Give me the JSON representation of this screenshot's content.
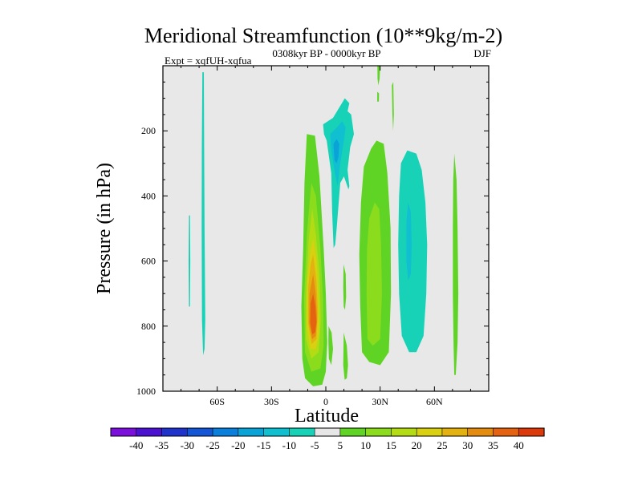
{
  "chart_data": {
    "type": "contour",
    "title": "Meridional Streamfunction (10**9kg/m-2)",
    "subtitle_left": "Expt = xqfUH-xqfua",
    "subtitle_center": "0308kyr BP - 0000kyr BP",
    "subtitle_right": "DJF",
    "xlabel": "Latitude",
    "ylabel": "Pressure (in hPa)",
    "xlim": [
      -90,
      90
    ],
    "ylim": [
      0,
      1000
    ],
    "y_inverted": true,
    "x_ticks": [
      {
        "value": -60,
        "label": "60S"
      },
      {
        "value": -30,
        "label": "30S"
      },
      {
        "value": 0,
        "label": "0"
      },
      {
        "value": 30,
        "label": "30N"
      },
      {
        "value": 60,
        "label": "60N"
      }
    ],
    "y_ticks": [
      {
        "value": 200,
        "label": "200"
      },
      {
        "value": 400,
        "label": "400"
      },
      {
        "value": 600,
        "label": "600"
      },
      {
        "value": 800,
        "label": "800"
      },
      {
        "value": 1000,
        "label": "1000"
      }
    ],
    "background_color": "#e8e8e8",
    "colorbar": {
      "levels": [
        -40,
        -35,
        -30,
        -25,
        -20,
        -15,
        -10,
        -5,
        5,
        10,
        15,
        20,
        25,
        30,
        35,
        40
      ],
      "labels": [
        "-40",
        "-35",
        "-30",
        "-25",
        "-20",
        "-15",
        "-10",
        "-5",
        "5",
        "10",
        "15",
        "20",
        "25",
        "30",
        "35",
        "40"
      ],
      "colors": [
        "#7b0fdc",
        "#4b12d2",
        "#2034cc",
        "#1456d6",
        "#0a80dc",
        "#0aa3d8",
        "#10c0d0",
        "#18d2b8",
        "#e6e6e6",
        "#60d424",
        "#8cdc1e",
        "#b4dc14",
        "#d8d010",
        "#e4b210",
        "#e48c10",
        "#e46210",
        "#dc3a0a"
      ]
    },
    "regions": [
      {
        "name": "contour-sh-narrow-band",
        "value": -7,
        "points": [
          [
            -68.2,
            20
          ],
          [
            -67.4,
            20
          ],
          [
            -67.2,
            250
          ],
          [
            -67.0,
            500
          ],
          [
            -66.6,
            780
          ],
          [
            -67.0,
            870
          ],
          [
            -67.8,
            890
          ],
          [
            -68.4,
            780
          ],
          [
            -68.6,
            500
          ],
          [
            -68.5,
            250
          ]
        ]
      },
      {
        "name": "contour-sh-sliver",
        "value": -7,
        "points": [
          [
            -75.6,
            460
          ],
          [
            -75.0,
            460
          ],
          [
            -74.9,
            600
          ],
          [
            -75.0,
            740
          ],
          [
            -75.6,
            740
          ],
          [
            -75.8,
            600
          ]
        ]
      },
      {
        "name": "contour-tropical-cell-5",
        "value": 7,
        "points": [
          [
            -10.5,
            210
          ],
          [
            -6,
            215
          ],
          [
            -3.5,
            340
          ],
          [
            -1.2,
            560
          ],
          [
            0,
            700
          ],
          [
            0.8,
            850
          ],
          [
            0,
            940
          ],
          [
            -2,
            980
          ],
          [
            -7,
            985
          ],
          [
            -11.5,
            960
          ],
          [
            -13,
            900
          ],
          [
            -13.5,
            740
          ],
          [
            -12.5,
            560
          ],
          [
            -11.8,
            360
          ]
        ]
      },
      {
        "name": "contour-tropical-cell-10",
        "value": 12,
        "points": [
          [
            -8,
            360
          ],
          [
            -5.5,
            400
          ],
          [
            -3,
            560
          ],
          [
            -1.5,
            720
          ],
          [
            -1.2,
            860
          ],
          [
            -3,
            930
          ],
          [
            -8,
            940
          ],
          [
            -11.5,
            880
          ],
          [
            -12,
            720
          ],
          [
            -10.5,
            520
          ]
        ]
      },
      {
        "name": "contour-tropical-cell-15",
        "value": 17,
        "points": [
          [
            -7.5,
            440
          ],
          [
            -5.5,
            520
          ],
          [
            -3.5,
            640
          ],
          [
            -2.8,
            780
          ],
          [
            -4,
            880
          ],
          [
            -8,
            900
          ],
          [
            -11,
            840
          ],
          [
            -11,
            700
          ],
          [
            -9.5,
            540
          ]
        ]
      },
      {
        "name": "contour-tropical-cell-20",
        "value": 22,
        "points": [
          [
            -7,
            530
          ],
          [
            -5,
            600
          ],
          [
            -4,
            720
          ],
          [
            -3.6,
            820
          ],
          [
            -5.5,
            870
          ],
          [
            -8.5,
            870
          ],
          [
            -10.5,
            800
          ],
          [
            -10.2,
            660
          ],
          [
            -8.6,
            570
          ]
        ]
      },
      {
        "name": "contour-tropical-cell-25",
        "value": 27,
        "points": [
          [
            -7,
            580
          ],
          [
            -5.2,
            660
          ],
          [
            -4.4,
            760
          ],
          [
            -5.2,
            840
          ],
          [
            -7.8,
            855
          ],
          [
            -9.8,
            790
          ],
          [
            -9.7,
            680
          ],
          [
            -8.4,
            610
          ]
        ]
      },
      {
        "name": "contour-tropical-cell-30",
        "value": 32,
        "points": [
          [
            -7,
            640
          ],
          [
            -5.6,
            700
          ],
          [
            -4.8,
            780
          ],
          [
            -5.6,
            830
          ],
          [
            -7.6,
            840
          ],
          [
            -9.2,
            790
          ],
          [
            -9,
            700
          ]
        ]
      },
      {
        "name": "contour-tropical-cell-35",
        "value": 37,
        "points": [
          [
            -7,
            700
          ],
          [
            -5.7,
            740
          ],
          [
            -5.2,
            790
          ],
          [
            -6,
            820
          ],
          [
            -7.5,
            825
          ],
          [
            -8.6,
            790
          ],
          [
            -8.4,
            730
          ]
        ]
      },
      {
        "name": "contour-upper-negative-5",
        "value": -7,
        "points": [
          [
            -1.5,
            180
          ],
          [
            4,
            160
          ],
          [
            10.5,
            100
          ],
          [
            13,
            115
          ],
          [
            12,
            140
          ],
          [
            14,
            150
          ],
          [
            15.5,
            210
          ],
          [
            13.5,
            250
          ],
          [
            12,
            320
          ],
          [
            13,
            370
          ],
          [
            12.5,
            380
          ],
          [
            10,
            340
          ],
          [
            8,
            360
          ],
          [
            6,
            500
          ],
          [
            5.2,
            550
          ],
          [
            4.3,
            560
          ],
          [
            3.5,
            450
          ],
          [
            3,
            330
          ],
          [
            0.5,
            230
          ],
          [
            -1,
            210
          ]
        ]
      },
      {
        "name": "contour-upper-negative-10",
        "value": -12,
        "points": [
          [
            2.4,
            210
          ],
          [
            6,
            190
          ],
          [
            9,
            170
          ],
          [
            11,
            190
          ],
          [
            10,
            230
          ],
          [
            8,
            300
          ],
          [
            6.5,
            370
          ],
          [
            5,
            330
          ],
          [
            3,
            260
          ]
        ]
      },
      {
        "name": "contour-upper-negative-15",
        "value": -17,
        "points": [
          [
            4.2,
            240
          ],
          [
            6,
            225
          ],
          [
            7.4,
            240
          ],
          [
            7,
            280
          ],
          [
            6,
            300
          ],
          [
            4.8,
            290
          ]
        ]
      },
      {
        "name": "contour-mid-positive-5",
        "value": 7,
        "points": [
          [
            21,
            310
          ],
          [
            25,
            255
          ],
          [
            28,
            230
          ],
          [
            32,
            240
          ],
          [
            34,
            330
          ],
          [
            35.8,
            500
          ],
          [
            36,
            700
          ],
          [
            34.8,
            880
          ],
          [
            30,
            920
          ],
          [
            24,
            910
          ],
          [
            20,
            880
          ],
          [
            19,
            740
          ],
          [
            18.5,
            580
          ],
          [
            19.4,
            420
          ]
        ]
      },
      {
        "name": "contour-mid-positive-10",
        "value": 12,
        "points": [
          [
            24,
            470
          ],
          [
            27,
            420
          ],
          [
            29.5,
            440
          ],
          [
            30.5,
            550
          ],
          [
            31,
            700
          ],
          [
            30,
            840
          ],
          [
            26,
            860
          ],
          [
            23,
            840
          ],
          [
            22.5,
            700
          ],
          [
            22.8,
            560
          ]
        ]
      },
      {
        "name": "contour-small-positive-a",
        "value": 7,
        "points": [
          [
            9.8,
            610
          ],
          [
            11,
            640
          ],
          [
            11.2,
            710
          ],
          [
            10.6,
            750
          ],
          [
            9.9,
            740
          ],
          [
            9.6,
            680
          ]
        ]
      },
      {
        "name": "contour-small-positive-b",
        "value": 7,
        "points": [
          [
            9.9,
            820
          ],
          [
            11.6,
            860
          ],
          [
            12.3,
            920
          ],
          [
            11.6,
            960
          ],
          [
            10.4,
            965
          ],
          [
            9.6,
            920
          ]
        ]
      },
      {
        "name": "contour-small-positive-c",
        "value": 7,
        "points": [
          [
            1.5,
            800
          ],
          [
            3.2,
            820
          ],
          [
            4,
            870
          ],
          [
            3,
            920
          ],
          [
            1.7,
            900
          ],
          [
            1.4,
            850
          ]
        ]
      },
      {
        "name": "contour-ferrel-negative-5",
        "value": -7,
        "points": [
          [
            45,
            260
          ],
          [
            50,
            270
          ],
          [
            53,
            320
          ],
          [
            55,
            420
          ],
          [
            56,
            550
          ],
          [
            55.5,
            700
          ],
          [
            54,
            830
          ],
          [
            50,
            880
          ],
          [
            46,
            880
          ],
          [
            42,
            830
          ],
          [
            40.5,
            700
          ],
          [
            40,
            550
          ],
          [
            40.5,
            400
          ],
          [
            41.5,
            300
          ]
        ]
      },
      {
        "name": "contour-ferrel-negative-10",
        "value": -12,
        "points": [
          [
            45.5,
            420
          ],
          [
            47,
            450
          ],
          [
            47.5,
            550
          ],
          [
            47,
            640
          ],
          [
            45.5,
            660
          ],
          [
            44.5,
            600
          ],
          [
            44.5,
            480
          ]
        ]
      },
      {
        "name": "contour-polar-positive-band",
        "value": 7,
        "points": [
          [
            71,
            270
          ],
          [
            72.2,
            350
          ],
          [
            72.8,
            500
          ],
          [
            73.2,
            700
          ],
          [
            72.8,
            850
          ],
          [
            71.8,
            950
          ],
          [
            71,
            950
          ],
          [
            70.6,
            860
          ],
          [
            70.2,
            700
          ],
          [
            70.2,
            500
          ],
          [
            70.4,
            350
          ]
        ]
      },
      {
        "name": "contour-top-positive-a",
        "value": 7,
        "points": [
          [
            28.5,
            0
          ],
          [
            30,
            0
          ],
          [
            29.7,
            40
          ],
          [
            29,
            60
          ],
          [
            28.6,
            40
          ]
        ]
      },
      {
        "name": "contour-top-positive-b",
        "value": 7,
        "points": [
          [
            36.5,
            60
          ],
          [
            37.3,
            50
          ],
          [
            37.6,
            150
          ],
          [
            37.2,
            200
          ],
          [
            36.8,
            150
          ]
        ]
      },
      {
        "name": "contour-top-positive-c",
        "value": 7,
        "points": [
          [
            28.4,
            80
          ],
          [
            29.4,
            85
          ],
          [
            29.3,
            110
          ],
          [
            28.4,
            110
          ]
        ]
      }
    ]
  }
}
